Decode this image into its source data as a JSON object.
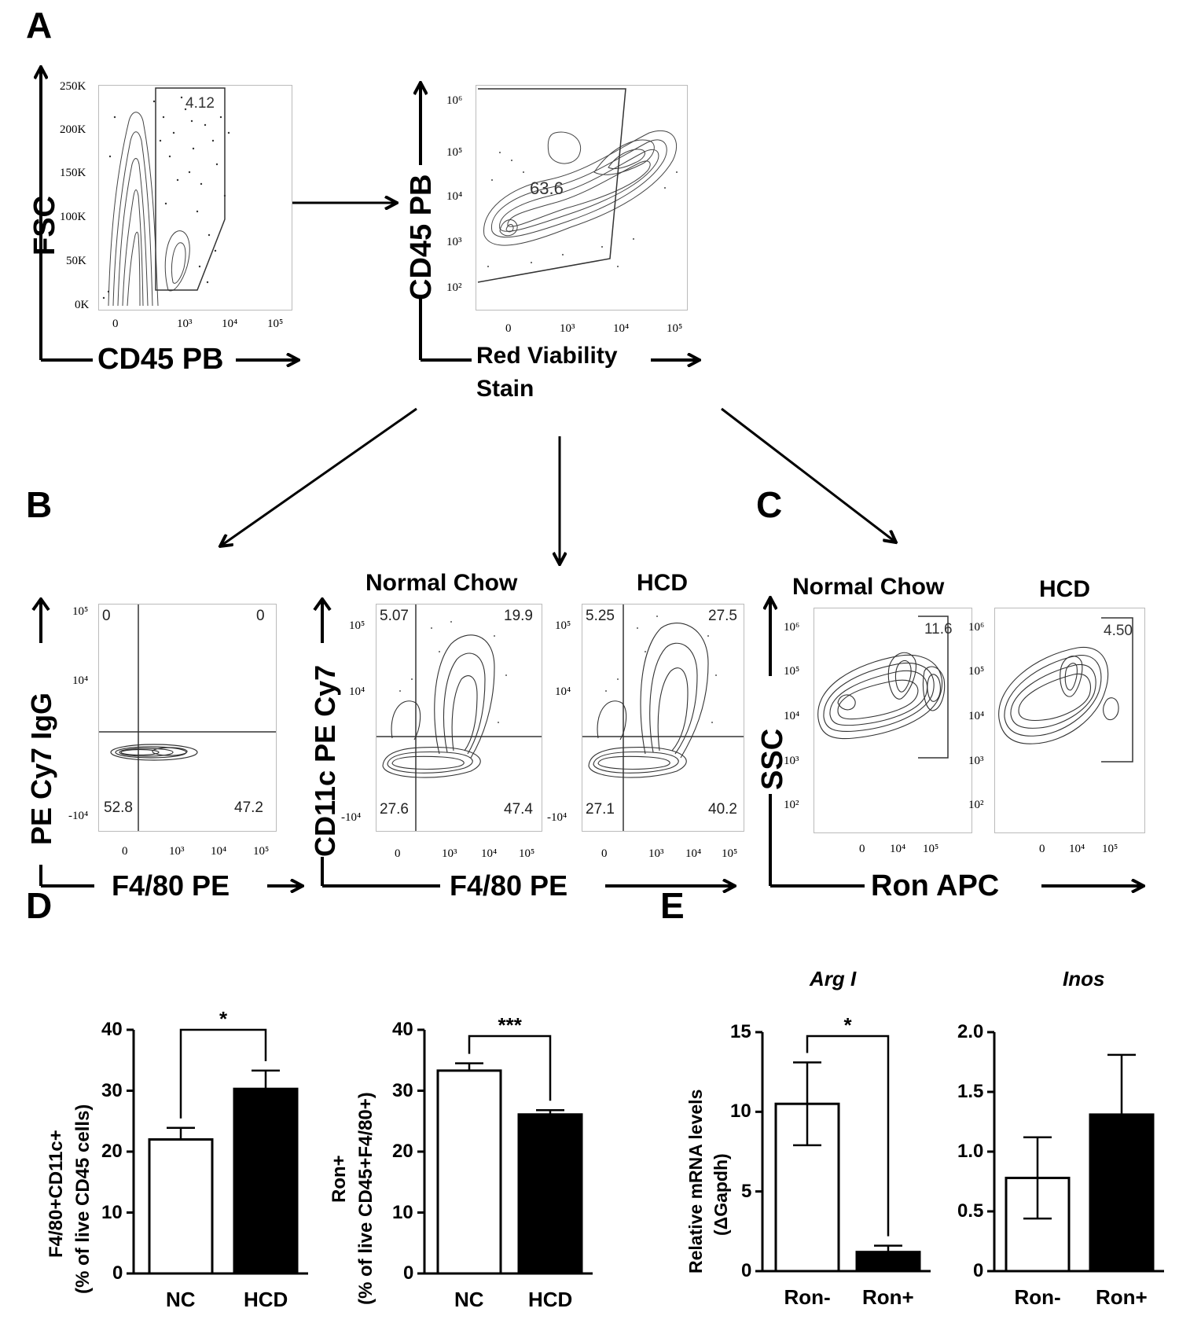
{
  "panels": {
    "A": "A",
    "B": "B",
    "C": "C",
    "D": "D",
    "E": "E"
  },
  "panelA": {
    "plot1": {
      "ylabel": "FSC",
      "xlabel": "CD45 PB",
      "yticks": [
        "250K",
        "200K",
        "150K",
        "100K",
        "50K",
        "0K"
      ],
      "xticks": [
        "0",
        "10³",
        "10⁴",
        "10⁵"
      ],
      "gate": "4.12"
    },
    "plot2": {
      "ylabel": "CD45 PB",
      "xlabel_line1": "Red Viability",
      "xlabel_line2": "Stain",
      "yticks": [
        "10⁶",
        "10⁵",
        "10⁴",
        "10³",
        "10²"
      ],
      "xticks": [
        "0",
        "10³",
        "10⁴",
        "10⁵"
      ],
      "gate": "63.6"
    }
  },
  "panelB": {
    "iso": {
      "ylabel": "PE Cy7 IgG",
      "xlabel": "F4/80 PE",
      "yticks": [
        "10⁵",
        "10⁴",
        "-10⁴"
      ],
      "xticks": [
        "0",
        "10³",
        "10⁴",
        "10⁵"
      ],
      "q": {
        "ul": "0",
        "ur": "0",
        "ll": "52.8",
        "lr": "47.2"
      }
    },
    "ylabel": "CD11c PE Cy7",
    "xlabel": "F4/80 PE",
    "nc": {
      "title": "Normal Chow",
      "yticks": [
        "10⁵",
        "10⁴",
        "-10⁴"
      ],
      "xticks": [
        "0",
        "10³",
        "10⁴",
        "10⁵"
      ],
      "q": {
        "ul": "5.07",
        "ur": "19.9",
        "ll": "27.6",
        "lr": "47.4"
      }
    },
    "hcd": {
      "title": "HCD",
      "yticks": [
        "10⁵",
        "10⁴",
        "-10⁴"
      ],
      "xticks": [
        "0",
        "10³",
        "10⁴",
        "10⁵"
      ],
      "q": {
        "ul": "5.25",
        "ur": "27.5",
        "ll": "27.1",
        "lr": "40.2"
      }
    }
  },
  "panelC": {
    "ylabel": "SSC",
    "xlabel": "Ron APC",
    "nc": {
      "title": "Normal Chow",
      "yticks": [
        "10⁶",
        "10⁵",
        "10⁴",
        "10³",
        "10²"
      ],
      "xticks": [
        "0",
        "10⁴",
        "10⁵"
      ],
      "gate": "11.6"
    },
    "hcd": {
      "title": "HCD",
      "yticks": [
        "10⁶",
        "10⁵",
        "10⁴",
        "10³",
        "10²"
      ],
      "xticks": [
        "0",
        "10⁴",
        "10⁵"
      ],
      "gate": "4.50"
    }
  },
  "chart_data": [
    {
      "type": "bar",
      "panel": "D",
      "ylabel_line1": "F4/80+CD11c+",
      "ylabel_line2": "(% of live CD45 cells)",
      "categories": [
        "NC",
        "HCD"
      ],
      "values": [
        22,
        30.3
      ],
      "errors": [
        1.9,
        3.0
      ],
      "fills": [
        "#ffffff",
        "#000000"
      ],
      "ylim": [
        0,
        40
      ],
      "yticks": [
        "0",
        "10",
        "20",
        "30",
        "40"
      ],
      "significance": "*"
    },
    {
      "type": "bar",
      "panel": "D",
      "ylabel_line1": "Ron+",
      "ylabel_line2": "(% of live CD45+F4/80+)",
      "categories": [
        "NC",
        "HCD"
      ],
      "values": [
        33.3,
        26.1
      ],
      "errors": [
        1.2,
        0.7
      ],
      "fills": [
        "#ffffff",
        "#000000"
      ],
      "ylim": [
        0,
        40
      ],
      "yticks": [
        "0",
        "10",
        "20",
        "30",
        "40"
      ],
      "significance": "***"
    },
    {
      "type": "bar",
      "panel": "E",
      "title": "Arg I",
      "ylabel_line1": "Relative mRNA levels",
      "ylabel_line2": "(ΔGapdh)",
      "categories": [
        "Ron-",
        "Ron+"
      ],
      "values": [
        10.5,
        1.2
      ],
      "errors": [
        2.6,
        0.4
      ],
      "fills": [
        "#ffffff",
        "#000000"
      ],
      "ylim": [
        0,
        15
      ],
      "yticks": [
        "0",
        "5",
        "10",
        "15"
      ],
      "significance": "*"
    },
    {
      "type": "bar",
      "panel": "E",
      "title": "Inos",
      "categories": [
        "Ron-",
        "Ron+"
      ],
      "values": [
        0.78,
        1.31
      ],
      "errors": [
        0.34,
        0.5
      ],
      "fills": [
        "#ffffff",
        "#000000"
      ],
      "ylim": [
        0,
        2.0
      ],
      "yticks": [
        "0",
        "0.5",
        "1.0",
        "1.5",
        "2.0"
      ]
    }
  ]
}
